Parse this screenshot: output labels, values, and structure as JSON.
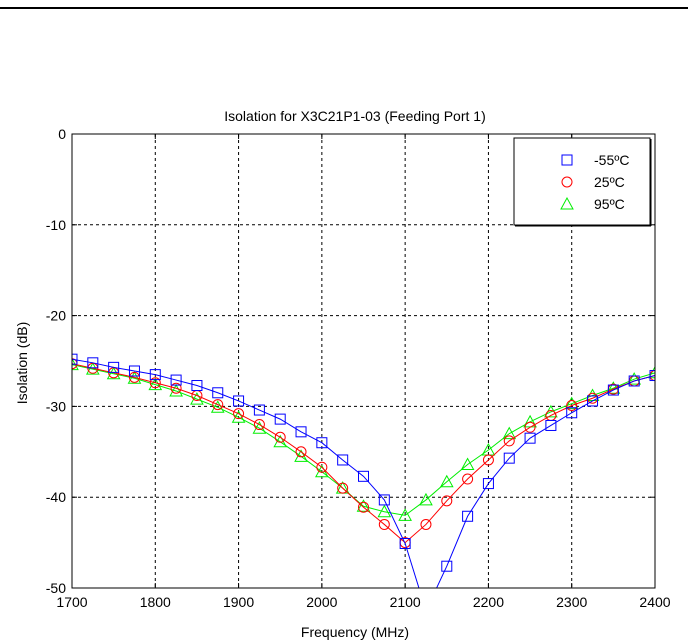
{
  "chart_data": {
    "type": "line",
    "title": "Isolation for X3C21P1-03 (Feeding Port 1)",
    "xlabel": "Frequency (MHz)",
    "ylabel": "Isolation (dB)",
    "xlim": [
      1700,
      2400
    ],
    "ylim": [
      -50,
      0
    ],
    "xticks": [
      1700,
      1800,
      1900,
      2000,
      2100,
      2200,
      2300,
      2400
    ],
    "yticks": [
      0,
      -10,
      -20,
      -30,
      -40,
      -50
    ],
    "grid": true,
    "legend_position": "top-right",
    "x": [
      1700,
      1725,
      1750,
      1775,
      1800,
      1825,
      1850,
      1875,
      1900,
      1925,
      1950,
      1975,
      2000,
      2025,
      2050,
      2075,
      2100,
      2125,
      2150,
      2175,
      2200,
      2225,
      2250,
      2275,
      2300,
      2325,
      2350,
      2375,
      2400
    ],
    "series": [
      {
        "name": "-55ºC",
        "color": "#0000ff",
        "marker": "square",
        "values": [
          -24.8,
          -25.2,
          -25.7,
          -26.1,
          -26.5,
          -27.1,
          -27.7,
          -28.5,
          -29.4,
          -30.4,
          -31.4,
          -32.8,
          -34.0,
          -35.9,
          -37.7,
          -40.3,
          -45.1,
          -52.5,
          -47.6,
          -42.1,
          -38.5,
          -35.7,
          -33.5,
          -32.1,
          -30.7,
          -29.4,
          -28.2,
          -27.2,
          -26.6
        ]
      },
      {
        "name": "25ºC",
        "color": "#ff0000",
        "marker": "circle",
        "values": [
          -25.3,
          -25.8,
          -26.3,
          -26.8,
          -27.4,
          -28.0,
          -28.8,
          -29.8,
          -30.8,
          -32.0,
          -33.4,
          -35.0,
          -36.7,
          -39.0,
          -41.1,
          -43.0,
          -45.0,
          -43.0,
          -40.4,
          -38.0,
          -35.9,
          -33.8,
          -32.3,
          -31.0,
          -29.9,
          -29.1,
          -28.1,
          -27.2,
          -26.6
        ]
      },
      {
        "name": "95ºC",
        "color": "#00ee00",
        "marker": "triangle",
        "values": [
          -25.4,
          -25.9,
          -26.4,
          -26.9,
          -27.6,
          -28.3,
          -29.2,
          -30.1,
          -31.2,
          -32.4,
          -33.9,
          -35.5,
          -37.2,
          -39.0,
          -41.0,
          -41.6,
          -42.0,
          -40.3,
          -38.3,
          -36.4,
          -34.8,
          -33.0,
          -31.7,
          -30.6,
          -29.7,
          -28.8,
          -28.0,
          -27.0,
          -26.3
        ]
      }
    ]
  }
}
